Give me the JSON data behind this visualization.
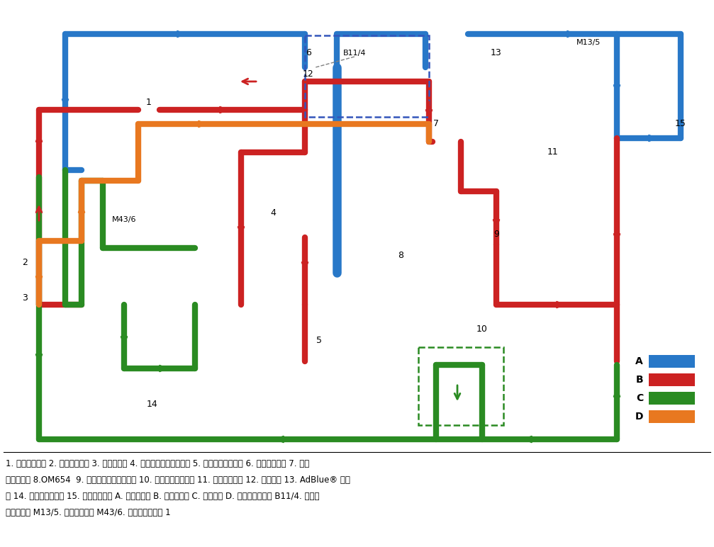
{
  "background_color": "#ffffff",
  "legend": {
    "items": [
      "A",
      "B",
      "C",
      "D"
    ],
    "colors": [
      "#2878C8",
      "#CC2222",
      "#2A8B22",
      "#E87820"
    ]
  },
  "caption_lines": [
    "1. 冷却液补偿罐 2. 发动机散热器 3. 低温冷却器 4. 高压废气再循环冷却器 5. 发动机油热交换器 6. 冷却液节温器 7. 废气",
    "涡轮增压器 8.OM654  9. 低压废气再循环冷却器 10. 变速器油热交换器 11. 暖风热交换器 12. 冷却液泵 13. AdBlue® 计量",
    "阀 14. 增压空气冷却器 15. 玻璃清洁液罐 A. 冷的冷却液 B. 热的冷却液 C. 低温回路 D. 冷却液回路排气 B11/4. 冷却液",
    "温度传感器 M13/5. 冷却液循环泵 M43/6. 低温回路循环泵 1"
  ],
  "colors": {
    "blue": "#2878C8",
    "red": "#CC2222",
    "green": "#2A8B22",
    "orange": "#E87820"
  },
  "lw": 6
}
